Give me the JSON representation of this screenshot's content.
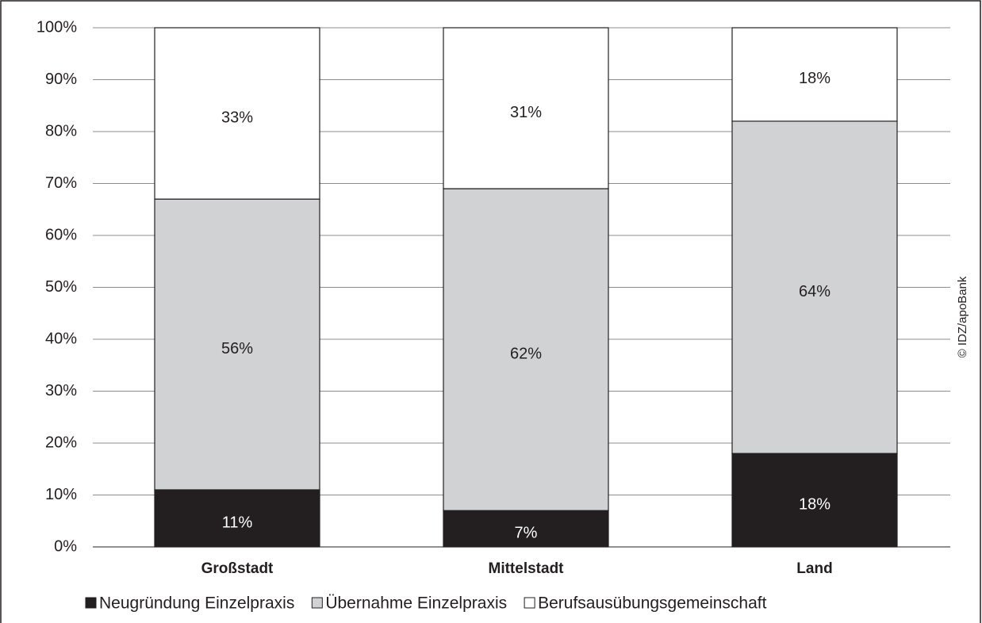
{
  "chart_data": {
    "type": "stacked_bar",
    "categories": [
      "Großstadt",
      "Mittelstadt",
      "Land"
    ],
    "series": [
      {
        "name": "Neugründung Einzelpraxis",
        "color": "#231f20",
        "values": [
          11,
          7,
          18
        ],
        "value_labels": [
          "11%",
          "7%",
          "18%"
        ]
      },
      {
        "name": "Übernahme Einzelpraxis",
        "color": "#d1d2d4",
        "values": [
          56,
          62,
          64
        ],
        "value_labels": [
          "56%",
          "62%",
          "64%"
        ]
      },
      {
        "name": "Berufsausübungsgemeinschaft",
        "color": "#ffffff",
        "values": [
          33,
          31,
          18
        ],
        "value_labels": [
          "33%",
          "31%",
          "18%"
        ]
      }
    ],
    "ylim": [
      0,
      100
    ],
    "yticks": [
      {
        "value": 0,
        "label": "0%"
      },
      {
        "value": 10,
        "label": "10%"
      },
      {
        "value": 20,
        "label": "20%"
      },
      {
        "value": 30,
        "label": "30%"
      },
      {
        "value": 40,
        "label": "40%"
      },
      {
        "value": 50,
        "label": "50%"
      },
      {
        "value": 60,
        "label": "60%"
      },
      {
        "value": 70,
        "label": "70%"
      },
      {
        "value": 80,
        "label": "80%"
      },
      {
        "value": 90,
        "label": "90%"
      },
      {
        "value": 100,
        "label": "100%"
      }
    ],
    "grid": true,
    "legend": "bottom",
    "annotation": "© IDZ/apoBank"
  }
}
